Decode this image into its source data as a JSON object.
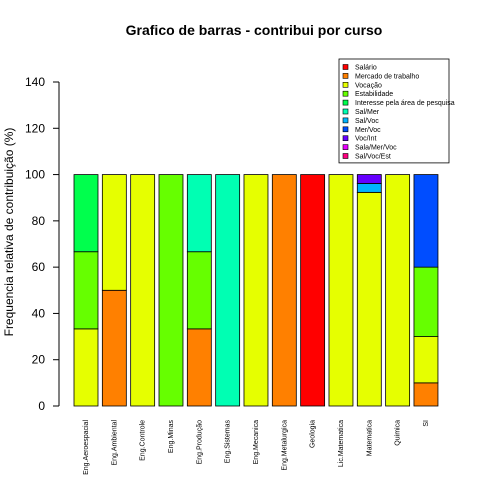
{
  "chart_data": {
    "type": "bar",
    "stacked": true,
    "title": "Grafico de barras - contribui por curso",
    "xlabel": "",
    "ylabel": "Frequencia relativa de contribuição (%)",
    "ylim": [
      0,
      140
    ],
    "yticks": [
      0,
      20,
      40,
      60,
      80,
      100,
      120,
      140
    ],
    "grid": false,
    "legend_position": "top-right",
    "categories": [
      "Eng.Aeroespacial",
      "Eng.Ambiental",
      "Eng.Controle",
      "Eng.Minas",
      "Eng.Produção",
      "Eng.Sistemas",
      "Eng.Mecanica",
      "Eng.Metalurgica",
      "Geologia",
      "Lic.Matematica",
      "Matematica",
      "Quimica",
      "SI"
    ],
    "series": [
      {
        "name": "Salário",
        "color": "#ff0000",
        "values": [
          0,
          0,
          0,
          0,
          0,
          0,
          0,
          0,
          100,
          0,
          0,
          0,
          0
        ]
      },
      {
        "name": "Mercado de trabalho",
        "color": "#ff8000",
        "values": [
          0,
          50,
          0,
          0,
          33.33,
          0,
          0,
          100,
          0,
          0,
          0,
          0,
          10
        ]
      },
      {
        "name": "Vocação",
        "color": "#e6ff00",
        "values": [
          33.33,
          50,
          100,
          0,
          0,
          0,
          100,
          0,
          0,
          100,
          92.31,
          100,
          20
        ]
      },
      {
        "name": "Estabilidade",
        "color": "#66ff00",
        "values": [
          33.33,
          0,
          0,
          100,
          33.33,
          0,
          0,
          0,
          0,
          0,
          0,
          0,
          30
        ]
      },
      {
        "name": "Interesse pela área de pesquisa",
        "color": "#00ff4d",
        "values": [
          33.33,
          0,
          0,
          0,
          0,
          0,
          0,
          0,
          0,
          0,
          0,
          0,
          0
        ]
      },
      {
        "name": "Sal/Mer",
        "color": "#00ffb3",
        "values": [
          0,
          0,
          0,
          0,
          33.33,
          100,
          0,
          0,
          0,
          0,
          0,
          0,
          0
        ]
      },
      {
        "name": "Sal/Voc",
        "color": "#00b3ff",
        "values": [
          0,
          0,
          0,
          0,
          0,
          0,
          0,
          0,
          0,
          0,
          3.85,
          0,
          0
        ]
      },
      {
        "name": "Mer/Voc",
        "color": "#004dff",
        "values": [
          0,
          0,
          0,
          0,
          0,
          0,
          0,
          0,
          0,
          0,
          0,
          0,
          40
        ]
      },
      {
        "name": "Voc/Int",
        "color": "#6600ff",
        "values": [
          0,
          0,
          0,
          0,
          0,
          0,
          0,
          0,
          0,
          0,
          3.85,
          0,
          0
        ]
      },
      {
        "name": "Sala/Mer/Voc",
        "color": "#e600ff",
        "values": [
          0,
          0,
          0,
          0,
          0,
          0,
          0,
          0,
          0,
          0,
          0,
          0,
          0
        ]
      },
      {
        "name": "Sal/Voc/Est",
        "color": "#ff0080",
        "values": [
          0,
          0,
          0,
          0,
          0,
          0,
          0,
          0,
          0,
          0,
          0,
          0,
          0
        ]
      }
    ]
  }
}
